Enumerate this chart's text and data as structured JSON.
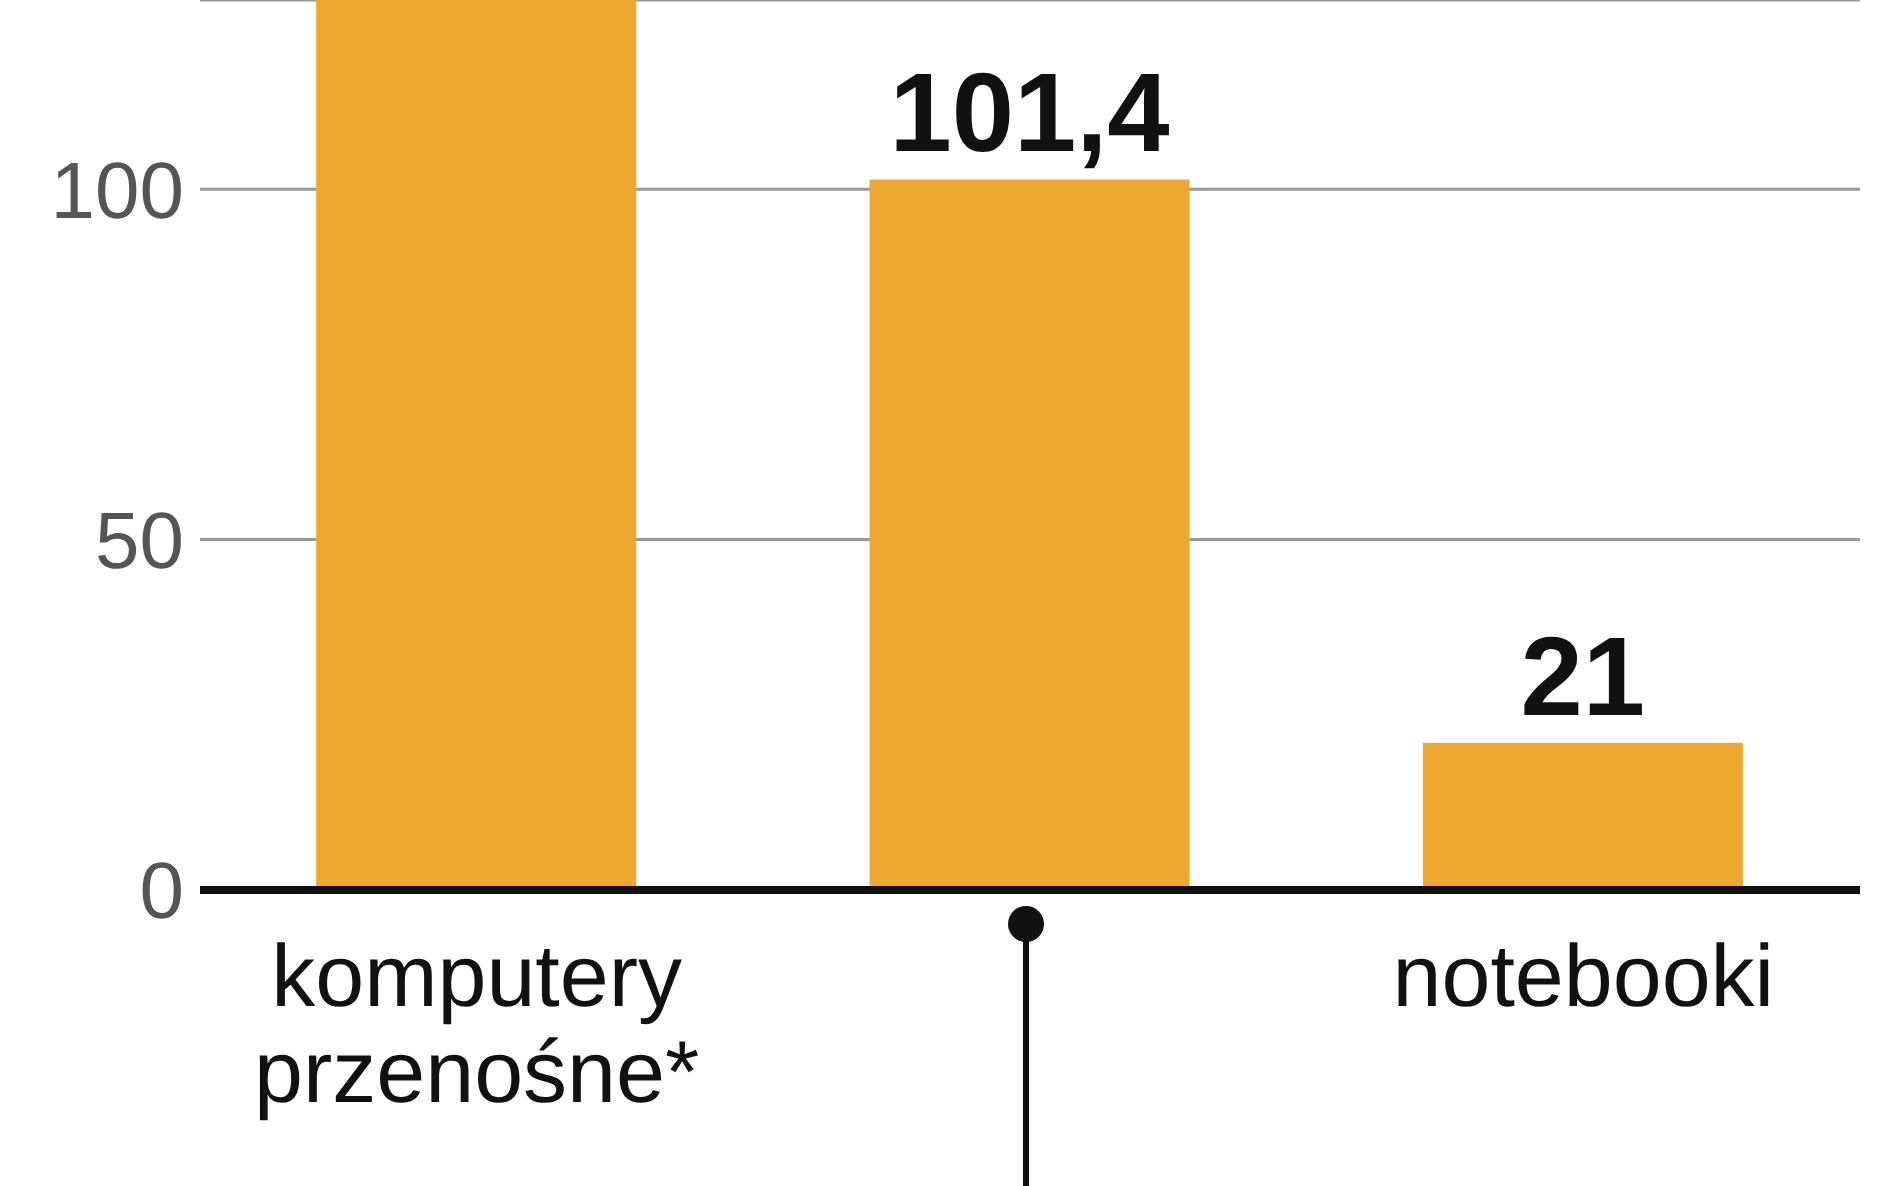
{
  "chart_data": {
    "type": "bar",
    "categories": [
      "komputery przenośne*",
      null,
      "notebooki"
    ],
    "values": [
      127,
      101.4,
      21
    ],
    "value_labels": [
      null,
      "101,4",
      "21"
    ],
    "color": "#eea832",
    "ylim": [
      0,
      127
    ],
    "yticks": [
      0,
      50,
      100
    ],
    "grid": "y"
  }
}
